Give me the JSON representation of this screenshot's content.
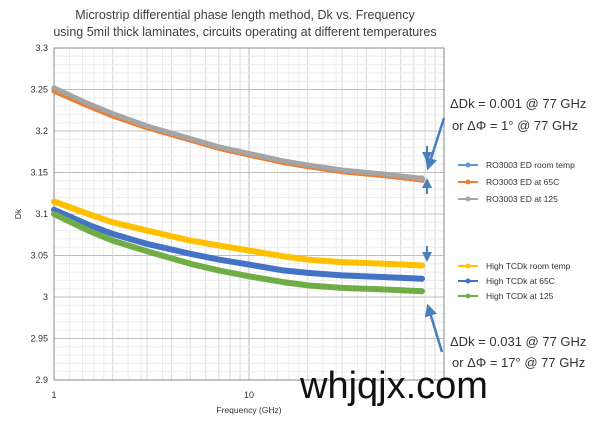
{
  "chart_data": {
    "type": "line",
    "title": [
      "Microstrip differential phase length method, Dk vs. Frequency",
      "using 5mil thick laminates, circuits operating at different temperatures"
    ],
    "xlabel": "Frequency (GHz)",
    "ylabel": "Dk",
    "xscale": "log",
    "xlim": [
      1,
      100
    ],
    "ylim": [
      2.9,
      3.3
    ],
    "x_ticks": [
      "1",
      "10"
    ],
    "y_ticks": [
      "2.9",
      "2.95",
      "3",
      "3.05",
      "3.1",
      "3.15",
      "3.2",
      "3.25",
      "3.3"
    ],
    "grid": true,
    "legend_position": "right",
    "series": [
      {
        "name": "RO3003 ED room temp",
        "color": "#5b9bd5",
        "x": [
          1,
          1.5,
          2,
          3,
          5,
          7,
          10,
          15,
          20,
          30,
          50,
          77
        ],
        "y": [
          3.25,
          3.232,
          3.22,
          3.205,
          3.19,
          3.18,
          3.172,
          3.163,
          3.158,
          3.152,
          3.147,
          3.142
        ]
      },
      {
        "name": "RO3003 ED at 65C",
        "color": "#ed7d31",
        "x": [
          1,
          1.5,
          2,
          3,
          5,
          7,
          10,
          15,
          20,
          30,
          50,
          77
        ],
        "y": [
          3.248,
          3.23,
          3.218,
          3.204,
          3.189,
          3.179,
          3.171,
          3.162,
          3.157,
          3.151,
          3.146,
          3.141
        ]
      },
      {
        "name": "RO3003 ED at 125",
        "color": "#a5a5a5",
        "x": [
          1,
          1.5,
          2,
          3,
          5,
          7,
          10,
          15,
          20,
          30,
          50,
          77
        ],
        "y": [
          3.252,
          3.233,
          3.221,
          3.206,
          3.191,
          3.181,
          3.173,
          3.164,
          3.159,
          3.153,
          3.148,
          3.143
        ]
      },
      {
        "name": "High TCDk room temp",
        "color": "#ffc000",
        "x": [
          1,
          1.5,
          2,
          3,
          5,
          7,
          10,
          15,
          20,
          30,
          50,
          77
        ],
        "y": [
          3.115,
          3.1,
          3.09,
          3.08,
          3.068,
          3.062,
          3.056,
          3.049,
          3.045,
          3.042,
          3.04,
          3.038
        ]
      },
      {
        "name": "High TCDk at 65C",
        "color": "#4472c4",
        "x": [
          1,
          1.5,
          2,
          3,
          5,
          7,
          10,
          15,
          20,
          30,
          50,
          77
        ],
        "y": [
          3.105,
          3.087,
          3.076,
          3.064,
          3.052,
          3.045,
          3.039,
          3.032,
          3.029,
          3.026,
          3.024,
          3.022
        ]
      },
      {
        "name": "High TCDk at 125",
        "color": "#70ad47",
        "x": [
          1,
          1.5,
          2,
          3,
          5,
          7,
          10,
          15,
          20,
          30,
          50,
          77
        ],
        "y": [
          3.1,
          3.08,
          3.068,
          3.055,
          3.04,
          3.032,
          3.025,
          3.018,
          3.014,
          3.011,
          3.009,
          3.007
        ]
      }
    ],
    "annotations": [
      {
        "lines": [
          "ΔDk = 0.001 @ 77 GHz",
          "or ΔΦ = 1° @ 77 GHz"
        ]
      },
      {
        "lines": [
          "ΔDk = 0.031 @ 77 GHz",
          "or ΔΦ = 17° @ 77 GHz"
        ]
      }
    ]
  },
  "watermark": "whjqjx.com"
}
